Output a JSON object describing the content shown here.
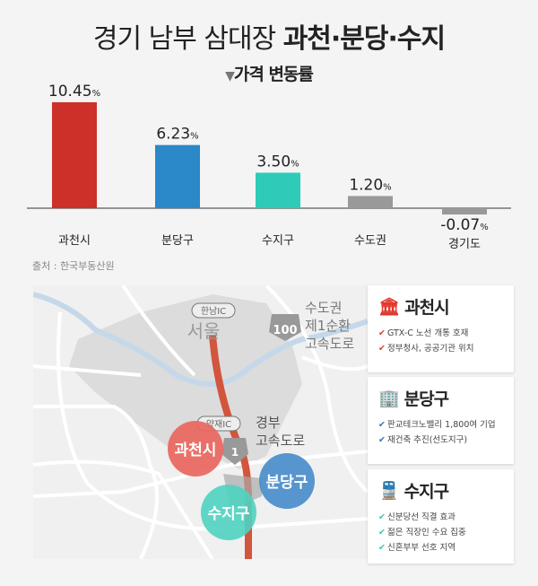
{
  "title": {
    "light": "경기 남부 삼대장 ",
    "bold": "과천·분당·수지"
  },
  "subtitle": {
    "marker": "▼",
    "text": "가격 변동률"
  },
  "source": "출처 : 한국부동산원",
  "chart_data": {
    "type": "bar",
    "categories": [
      "과천시",
      "분당구",
      "수지구",
      "수도권",
      "경기도"
    ],
    "values": [
      10.45,
      6.23,
      3.5,
      1.2,
      -0.07
    ],
    "value_labels": [
      "10.45",
      "6.23",
      "3.50",
      "1.20",
      "-0.07"
    ],
    "unit": "%",
    "colors": [
      "#cc3028",
      "#2b88c9",
      "#2ecbb8",
      "#999999",
      "#999999"
    ],
    "grid": false
  },
  "map": {
    "labels": {
      "seoul": "서울",
      "ring_road": [
        "수도권",
        "제1순환",
        "고속도로"
      ],
      "ring_shield": "100",
      "gyeongbu": [
        "경부",
        "고속도로"
      ],
      "gyeongbu_shield": "1",
      "hannam": "한남IC",
      "yangjae": "양재IC"
    },
    "bubbles": [
      {
        "label": "과천시",
        "color": "#e9665e"
      },
      {
        "label": "분당구",
        "color": "#4a8dcb"
      },
      {
        "label": "수지구",
        "color": "#4fd1c0"
      }
    ]
  },
  "cards": [
    {
      "title": "과천시",
      "icon": "government-building-icon",
      "color": "#e1392e",
      "items": [
        "GTX-C 노선 개통 호재",
        "정부청사, 공공기관 위치"
      ]
    },
    {
      "title": "분당구",
      "icon": "office-buildings-icon",
      "color": "#2a73c0",
      "items": [
        "판교테크노밸리 1,800여 기업",
        "재건축 추진(선도지구)"
      ]
    },
    {
      "title": "수지구",
      "icon": "train-icon",
      "color": "#2ec6b4",
      "items": [
        "신분당선 직결 효과",
        "젊은 직장인 수요 집중",
        "신혼부부 선호 지역"
      ]
    }
  ],
  "check_mark": "✔"
}
